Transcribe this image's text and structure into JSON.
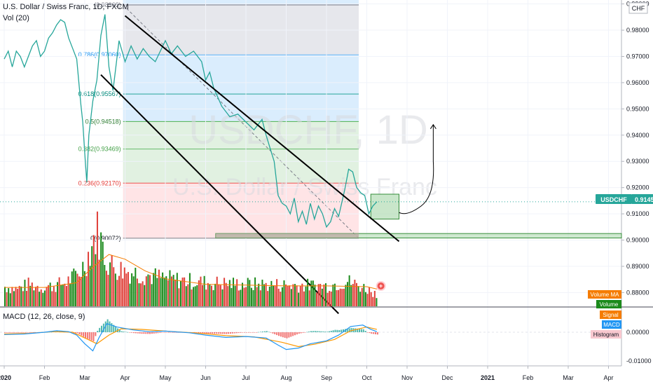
{
  "header": {
    "symbol_title": "U.S. Dollar / Swiss Franc, 1D, FXCM",
    "volume_indicator": "Vol (20)",
    "macd_indicator": "MACD (12, 26, close, 9)",
    "currency": "CHF"
  },
  "watermark": {
    "ticker": "USDCHF, 1D",
    "name": "U.S. Dollar / Swiss Franc"
  },
  "colors": {
    "up": "#26a69a",
    "down": "#ef5350",
    "volume_up": "#1b8a1b",
    "volume_down": "#e0403a",
    "macd_line": "#2196f3",
    "signal_line": "#ff9800",
    "volume_ma": "#f57c00",
    "price_badge": "#26a69a"
  },
  "chart_data": {
    "type": "line",
    "price_axis": {
      "ylim": [
        0.8745,
        0.9915
      ],
      "ticks": [
        "0.99000",
        "0.98000",
        "0.97000",
        "0.96000",
        "0.95000",
        "0.94000",
        "0.93000",
        "0.92000",
        "0.91000",
        "0.90000",
        "0.89000",
        "0.88000"
      ],
      "tick_values": [
        0.99,
        0.98,
        0.97,
        0.96,
        0.95,
        0.94,
        0.93,
        0.92,
        0.91,
        0.9,
        0.89,
        0.88
      ],
      "last_price_label": "USDCHF",
      "last_price": "0.91457"
    },
    "macd_axis": {
      "ticks": [
        "0.00000",
        "-0.01000"
      ],
      "tick_values": [
        0,
        -0.01
      ]
    },
    "time_axis": {
      "labels": [
        "2020",
        "Feb",
        "Mar",
        "Apr",
        "May",
        "Jun",
        "Jul",
        "Aug",
        "Sep",
        "Oct",
        "Nov",
        "Dec",
        "2021",
        "Feb",
        "Mar",
        "Apr"
      ],
      "months": [
        0,
        1,
        2,
        3,
        4,
        5,
        6,
        7,
        8,
        9,
        10,
        11,
        12,
        13,
        14,
        15
      ]
    },
    "fibonacci": [
      {
        "label": "(0.98963)",
        "value": 0.98963
      },
      {
        "label": "0.786(0.97060)",
        "value": 0.9706
      },
      {
        "label": "0.618(0.95567)",
        "value": 0.95567
      },
      {
        "label": "0.5(0.94518)",
        "value": 0.94518
      },
      {
        "label": "0.382(0.93469)",
        "value": 0.93469
      },
      {
        "label": "0.236(0.92170)",
        "value": 0.9217
      },
      {
        "label": "0(0.90072)",
        "value": 0.90072
      }
    ],
    "price_series": [
      {
        "m": 0.0,
        "v": 0.969
      },
      {
        "m": 0.1,
        "v": 0.972
      },
      {
        "m": 0.2,
        "v": 0.966
      },
      {
        "m": 0.3,
        "v": 0.972
      },
      {
        "m": 0.4,
        "v": 0.97
      },
      {
        "m": 0.5,
        "v": 0.966
      },
      {
        "m": 0.6,
        "v": 0.97
      },
      {
        "m": 0.7,
        "v": 0.974
      },
      {
        "m": 0.8,
        "v": 0.976
      },
      {
        "m": 0.9,
        "v": 0.97
      },
      {
        "m": 1.0,
        "v": 0.972
      },
      {
        "m": 1.1,
        "v": 0.977
      },
      {
        "m": 1.2,
        "v": 0.979
      },
      {
        "m": 1.3,
        "v": 0.982
      },
      {
        "m": 1.4,
        "v": 0.984
      },
      {
        "m": 1.5,
        "v": 0.983
      },
      {
        "m": 1.6,
        "v": 0.977
      },
      {
        "m": 1.7,
        "v": 0.973
      },
      {
        "m": 1.8,
        "v": 0.969
      },
      {
        "m": 1.9,
        "v": 0.952
      },
      {
        "m": 1.95,
        "v": 0.945
      },
      {
        "m": 2.0,
        "v": 0.933
      },
      {
        "m": 2.05,
        "v": 0.922
      },
      {
        "m": 2.1,
        "v": 0.94
      },
      {
        "m": 2.2,
        "v": 0.953
      },
      {
        "m": 2.3,
        "v": 0.961
      },
      {
        "m": 2.4,
        "v": 0.978
      },
      {
        "m": 2.5,
        "v": 0.986
      },
      {
        "m": 2.6,
        "v": 0.966
      },
      {
        "m": 2.7,
        "v": 0.957
      },
      {
        "m": 2.85,
        "v": 0.976
      },
      {
        "m": 3.0,
        "v": 0.968
      },
      {
        "m": 3.15,
        "v": 0.974
      },
      {
        "m": 3.3,
        "v": 0.969
      },
      {
        "m": 3.45,
        "v": 0.973
      },
      {
        "m": 3.6,
        "v": 0.97
      },
      {
        "m": 3.75,
        "v": 0.968
      },
      {
        "m": 4.0,
        "v": 0.976
      },
      {
        "m": 4.15,
        "v": 0.971
      },
      {
        "m": 4.3,
        "v": 0.974
      },
      {
        "m": 4.5,
        "v": 0.97
      },
      {
        "m": 4.7,
        "v": 0.972
      },
      {
        "m": 4.9,
        "v": 0.968
      },
      {
        "m": 5.0,
        "v": 0.961
      },
      {
        "m": 5.1,
        "v": 0.964
      },
      {
        "m": 5.2,
        "v": 0.958
      },
      {
        "m": 5.4,
        "v": 0.951
      },
      {
        "m": 5.6,
        "v": 0.947
      },
      {
        "m": 5.8,
        "v": 0.948
      },
      {
        "m": 6.0,
        "v": 0.945
      },
      {
        "m": 6.2,
        "v": 0.942
      },
      {
        "m": 6.4,
        "v": 0.946
      },
      {
        "m": 6.5,
        "v": 0.94
      },
      {
        "m": 6.6,
        "v": 0.935
      },
      {
        "m": 6.7,
        "v": 0.93
      },
      {
        "m": 6.8,
        "v": 0.917
      },
      {
        "m": 6.9,
        "v": 0.914
      },
      {
        "m": 7.0,
        "v": 0.913
      },
      {
        "m": 7.1,
        "v": 0.91
      },
      {
        "m": 7.2,
        "v": 0.916
      },
      {
        "m": 7.3,
        "v": 0.907
      },
      {
        "m": 7.4,
        "v": 0.911
      },
      {
        "m": 7.5,
        "v": 0.906
      },
      {
        "m": 7.6,
        "v": 0.914
      },
      {
        "m": 7.7,
        "v": 0.908
      },
      {
        "m": 7.8,
        "v": 0.913
      },
      {
        "m": 7.9,
        "v": 0.91
      },
      {
        "m": 8.0,
        "v": 0.905
      },
      {
        "m": 8.1,
        "v": 0.907
      },
      {
        "m": 8.2,
        "v": 0.912
      },
      {
        "m": 8.3,
        "v": 0.909
      },
      {
        "m": 8.45,
        "v": 0.919
      },
      {
        "m": 8.55,
        "v": 0.927
      },
      {
        "m": 8.65,
        "v": 0.926
      },
      {
        "m": 8.75,
        "v": 0.92
      },
      {
        "m": 8.85,
        "v": 0.918
      },
      {
        "m": 8.95,
        "v": 0.917
      },
      {
        "m": 9.05,
        "v": 0.91
      },
      {
        "m": 9.15,
        "v": 0.913
      },
      {
        "m": 9.25,
        "v": 0.9146
      }
    ],
    "volume_series": [
      {
        "m": 0.0,
        "v": 0.25
      },
      {
        "m": 0.3,
        "v": 0.22
      },
      {
        "m": 0.6,
        "v": 0.28
      },
      {
        "m": 0.9,
        "v": 0.24
      },
      {
        "m": 1.2,
        "v": 0.26
      },
      {
        "m": 1.5,
        "v": 0.3
      },
      {
        "m": 1.8,
        "v": 0.4
      },
      {
        "m": 2.0,
        "v": 0.55
      },
      {
        "m": 2.1,
        "v": 0.7
      },
      {
        "m": 2.2,
        "v": 0.85
      },
      {
        "m": 2.3,
        "v": 0.95
      },
      {
        "m": 2.4,
        "v": 0.8
      },
      {
        "m": 2.5,
        "v": 0.6
      },
      {
        "m": 2.7,
        "v": 0.5
      },
      {
        "m": 3.0,
        "v": 0.45
      },
      {
        "m": 3.5,
        "v": 0.4
      },
      {
        "m": 4.0,
        "v": 0.35
      },
      {
        "m": 5.0,
        "v": 0.3
      },
      {
        "m": 6.0,
        "v": 0.28
      },
      {
        "m": 7.0,
        "v": 0.27
      },
      {
        "m": 8.0,
        "v": 0.26
      },
      {
        "m": 8.5,
        "v": 0.32
      },
      {
        "m": 9.0,
        "v": 0.22
      },
      {
        "m": 9.25,
        "v": 0.15
      }
    ],
    "volume_ma_series": [
      {
        "m": 0.0,
        "v": 0.24
      },
      {
        "m": 1.0,
        "v": 0.24
      },
      {
        "m": 1.8,
        "v": 0.3
      },
      {
        "m": 2.2,
        "v": 0.5
      },
      {
        "m": 2.6,
        "v": 0.66
      },
      {
        "m": 3.0,
        "v": 0.6
      },
      {
        "m": 3.5,
        "v": 0.45
      },
      {
        "m": 4.0,
        "v": 0.35
      },
      {
        "m": 5.0,
        "v": 0.28
      },
      {
        "m": 6.0,
        "v": 0.27
      },
      {
        "m": 7.0,
        "v": 0.26
      },
      {
        "m": 8.0,
        "v": 0.26
      },
      {
        "m": 9.0,
        "v": 0.25
      },
      {
        "m": 9.25,
        "v": 0.22
      }
    ],
    "macd_series": [
      {
        "m": 0.0,
        "v": -0.0008
      },
      {
        "m": 0.5,
        "v": -0.0006
      },
      {
        "m": 1.0,
        "v": 0.0
      },
      {
        "m": 1.3,
        "v": 0.0005
      },
      {
        "m": 1.6,
        "v": 0.0002
      },
      {
        "m": 1.8,
        "v": -0.001
      },
      {
        "m": 2.0,
        "v": -0.004
      },
      {
        "m": 2.2,
        "v": -0.0065
      },
      {
        "m": 2.35,
        "v": -0.002
      },
      {
        "m": 2.55,
        "v": 0.003
      },
      {
        "m": 2.8,
        "v": 0.0018
      },
      {
        "m": 3.2,
        "v": 0.0008
      },
      {
        "m": 3.6,
        "v": 0.0002
      },
      {
        "m": 4.0,
        "v": 0.0004
      },
      {
        "m": 4.6,
        "v": -0.0002
      },
      {
        "m": 5.0,
        "v": -0.001
      },
      {
        "m": 5.5,
        "v": -0.0018
      },
      {
        "m": 6.0,
        "v": -0.0015
      },
      {
        "m": 6.5,
        "v": -0.002
      },
      {
        "m": 6.8,
        "v": -0.0045
      },
      {
        "m": 7.0,
        "v": -0.006
      },
      {
        "m": 7.3,
        "v": -0.0055
      },
      {
        "m": 7.6,
        "v": -0.004
      },
      {
        "m": 8.0,
        "v": -0.003
      },
      {
        "m": 8.3,
        "v": -0.001
      },
      {
        "m": 8.6,
        "v": 0.002
      },
      {
        "m": 8.9,
        "v": 0.0025
      },
      {
        "m": 9.1,
        "v": 0.001
      },
      {
        "m": 9.25,
        "v": 0.0002
      }
    ],
    "signal_series": [
      {
        "m": 0.0,
        "v": -0.0006
      },
      {
        "m": 0.6,
        "v": -0.0004
      },
      {
        "m": 1.2,
        "v": 0.0002
      },
      {
        "m": 1.7,
        "v": 0.0
      },
      {
        "m": 2.0,
        "v": -0.002
      },
      {
        "m": 2.3,
        "v": -0.004
      },
      {
        "m": 2.6,
        "v": -0.001
      },
      {
        "m": 2.9,
        "v": 0.0012
      },
      {
        "m": 3.4,
        "v": 0.001
      },
      {
        "m": 4.0,
        "v": 0.0004
      },
      {
        "m": 4.8,
        "v": -0.0003
      },
      {
        "m": 5.5,
        "v": -0.0012
      },
      {
        "m": 6.2,
        "v": -0.0016
      },
      {
        "m": 6.9,
        "v": -0.0035
      },
      {
        "m": 7.3,
        "v": -0.005
      },
      {
        "m": 7.7,
        "v": -0.0042
      },
      {
        "m": 8.2,
        "v": -0.0025
      },
      {
        "m": 8.6,
        "v": 0.0005
      },
      {
        "m": 9.0,
        "v": 0.0018
      },
      {
        "m": 9.25,
        "v": 0.001
      }
    ],
    "legend_badges": [
      "Volume MA",
      "Volume",
      "Signal",
      "MACD",
      "Histogram"
    ],
    "channel": {
      "upper": [
        {
          "m": 3.0,
          "v": 0.9855
        },
        {
          "m": 9.8,
          "v": 0.8995
        }
      ],
      "lower": [
        {
          "m": 2.4,
          "v": 0.963
        },
        {
          "m": 8.3,
          "v": 0.872
        }
      ]
    },
    "support_zone": [
      0.9025,
      0.9008
    ],
    "consolidation_box": {
      "m_start": 9.1,
      "m_end": 9.8,
      "top": 0.9175,
      "bottom": 0.908
    },
    "projection": [
      {
        "m": 9.8,
        "v": 0.9105
      },
      {
        "m": 10.0,
        "v": 0.909
      },
      {
        "m": 10.35,
        "v": 0.913
      },
      {
        "m": 10.65,
        "v": 0.93
      },
      {
        "m": 10.65,
        "v": 0.944
      }
    ]
  }
}
